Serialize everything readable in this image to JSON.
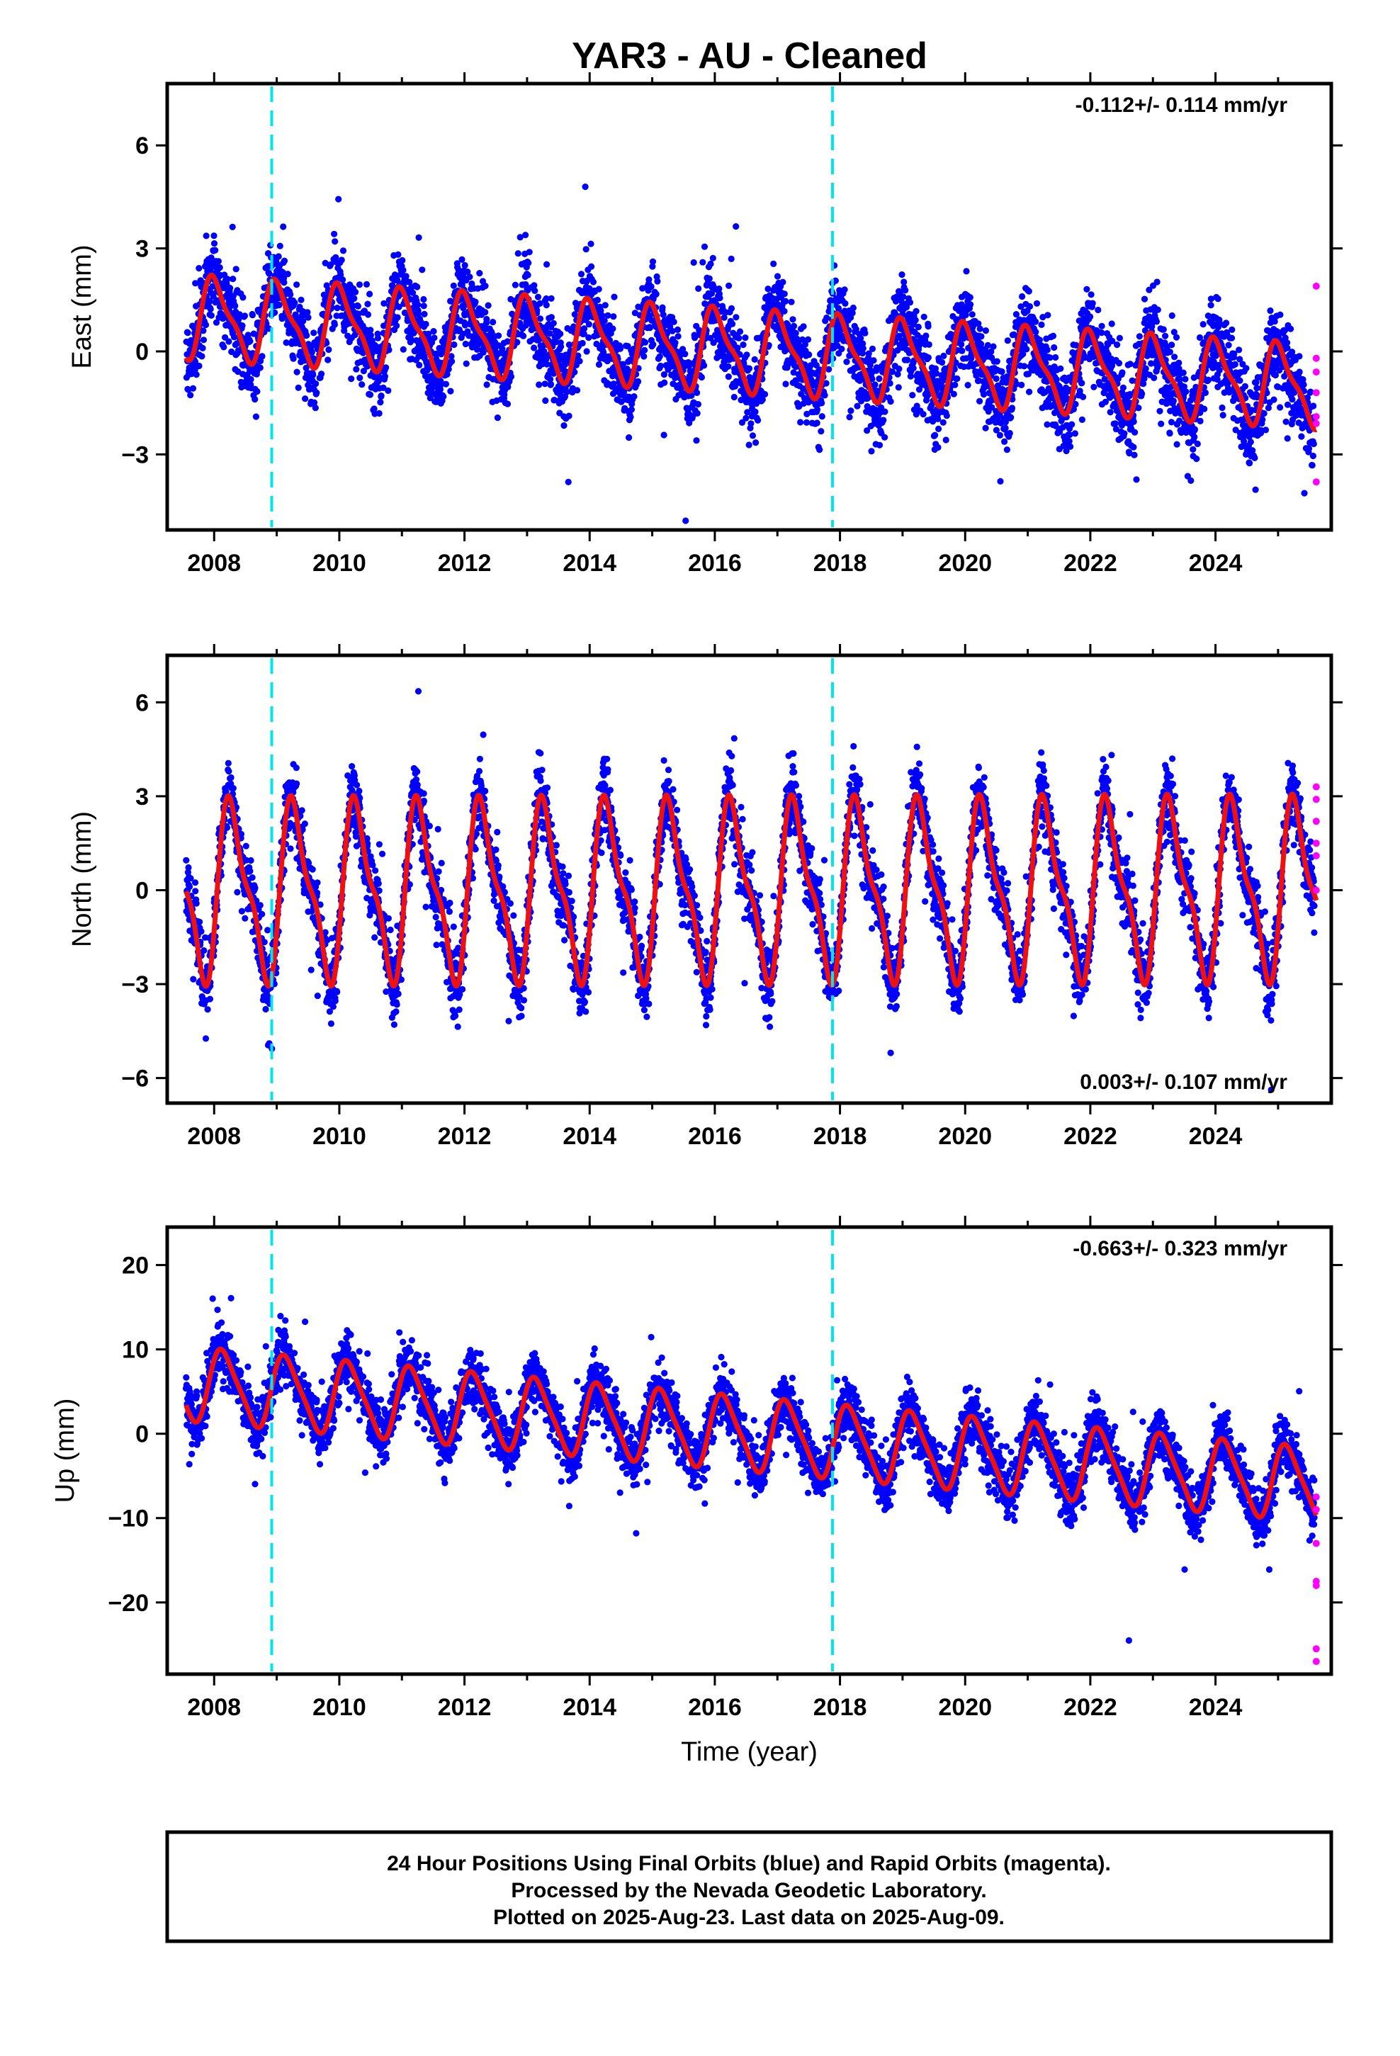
{
  "title": "YAR3  - AU - Cleaned",
  "footer": {
    "line1": "24 Hour Positions Using Final Orbits (blue) and Rapid Orbits (magenta).",
    "line2": "Processed by the Nevada Geodetic Laboratory.",
    "line3": "Plotted on 2025-Aug-23. Last data on 2025-Aug-09."
  },
  "colors": {
    "final_orbits": "#0000ff",
    "rapid_orbits": "#ff00ff",
    "model": "#ee1111",
    "equipment_change": "#00e5ee"
  },
  "chart_data": [
    {
      "type": "scatter",
      "panel": "east",
      "ylabel": "East (mm)",
      "xlabel": "",
      "rate_text": "-0.112+/- 0.114 mm/yr",
      "rate_position": "top-right",
      "xlim": [
        2007.25,
        2025.85
      ],
      "ylim": [
        -5.2,
        7.8
      ],
      "xticks": [
        "2008",
        "2010",
        "2012",
        "2014",
        "2016",
        "2018",
        "2020",
        "2022",
        "2024"
      ],
      "yticks": [
        "6",
        "3",
        "0",
        "−3"
      ],
      "data_span": [
        2007.55,
        2025.61
      ],
      "rapid_span": [
        2025.58,
        2025.61
      ],
      "rapid_values": [
        1.9,
        -0.2,
        -0.6,
        -1.2,
        -1.9,
        -2.1,
        -3.8
      ],
      "equipment_changes": [
        2008.92,
        2017.88
      ],
      "model": {
        "rate": -0.112,
        "offset": 0.8,
        "annual_amplitude": 1.1,
        "annual_phase": 1.4,
        "semiannual_amplitude": 0.35,
        "scatter": 1.1
      },
      "grid": false
    },
    {
      "type": "scatter",
      "panel": "north",
      "ylabel": "North (mm)",
      "xlabel": "",
      "rate_text": "0.003+/- 0.107 mm/yr",
      "rate_position": "bottom-right",
      "xlim": [
        2007.25,
        2025.85
      ],
      "ylim": [
        -6.8,
        7.5
      ],
      "xticks": [
        "2008",
        "2010",
        "2012",
        "2014",
        "2016",
        "2018",
        "2020",
        "2022",
        "2024"
      ],
      "yticks": [
        "6",
        "3",
        "0",
        "−3",
        "−6"
      ],
      "data_span": [
        2007.55,
        2025.61
      ],
      "rapid_span": [
        2025.58,
        2025.61
      ],
      "rapid_values": [
        3.3,
        2.9,
        2.2,
        1.5,
        1.1,
        0.0
      ],
      "equipment_changes": [
        2008.92,
        2017.88
      ],
      "model": {
        "rate": 0.003,
        "offset": 0.5,
        "annual_amplitude": 2.6,
        "annual_phase": -0.3,
        "semiannual_amplitude": 0.9,
        "scatter": 1.0
      },
      "grid": false
    },
    {
      "type": "scatter",
      "panel": "up",
      "ylabel": "Up (mm)",
      "xlabel": "Time (year)",
      "rate_text": "-0.663+/- 0.323 mm/yr",
      "rate_position": "top-right",
      "xlim": [
        2007.25,
        2025.85
      ],
      "ylim": [
        -28.5,
        24.5
      ],
      "xticks": [
        "2008",
        "2010",
        "2012",
        "2014",
        "2016",
        "2018",
        "2020",
        "2022",
        "2024"
      ],
      "yticks": [
        "20",
        "10",
        "0",
        "−10",
        "−20"
      ],
      "data_span": [
        2007.55,
        2025.61
      ],
      "rapid_span": [
        2025.58,
        2025.61
      ],
      "rapid_values": [
        -7.5,
        -9.0,
        -13.0,
        -17.5,
        -18.0,
        -25.5,
        -27.0
      ],
      "equipment_changes": [
        2008.92,
        2017.88
      ],
      "model": {
        "rate": -0.663,
        "offset": 5.5,
        "annual_amplitude": 4.2,
        "annual_phase": 0.6,
        "semiannual_amplitude": 0.8,
        "scatter": 3.0
      },
      "grid": false
    }
  ]
}
